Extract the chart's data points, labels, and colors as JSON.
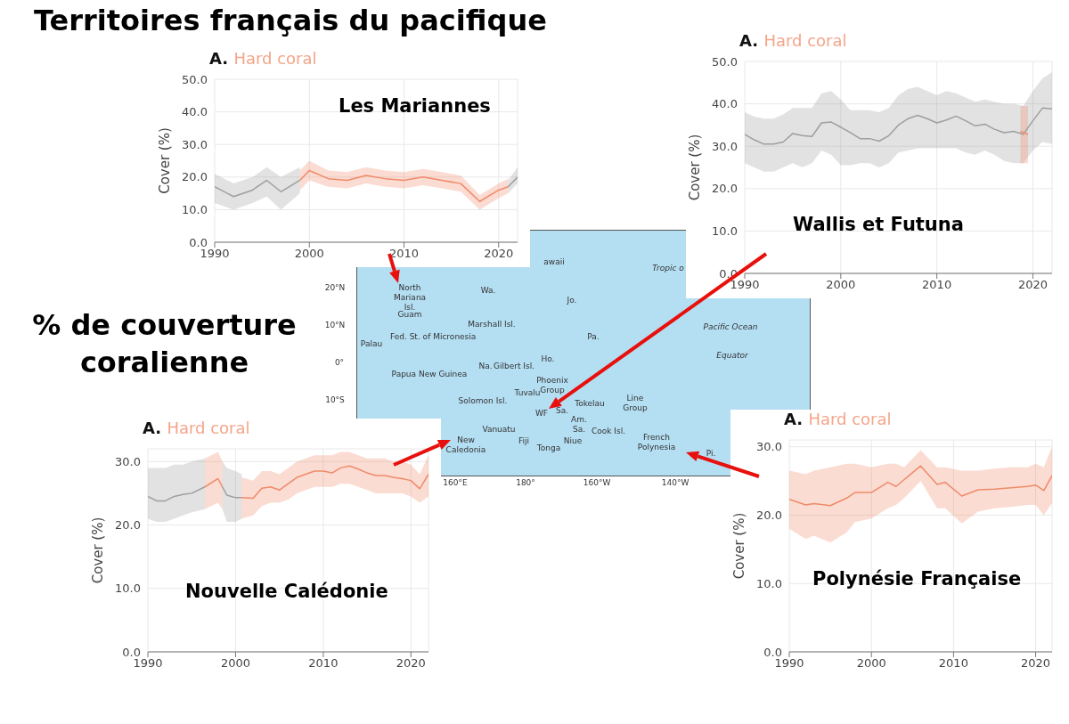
{
  "chart_data": [
    {
      "type": "other",
      "title": "Territoires français du pacifique",
      "annotations": [
        "% de couverture coralienne"
      ]
    },
    {
      "type": "line",
      "title": "A.",
      "subtitle": "Hard coral",
      "ylabel": "Cover (%)",
      "annotations": [
        "Les Mariannes"
      ],
      "xlim": [
        1990,
        2022
      ],
      "xticks": [
        1990,
        2000,
        2010,
        2020
      ],
      "ylim": [
        0,
        50
      ],
      "yticks": [
        {
          "value": 0,
          "label": "0.0"
        },
        {
          "value": 10,
          "label": "10.0"
        },
        {
          "value": 20,
          "label": "20.0"
        },
        {
          "value": 30,
          "label": "30.0"
        },
        {
          "value": 40,
          "label": "40.0"
        },
        {
          "value": 50,
          "label": "50.0"
        }
      ],
      "grid": true,
      "series": [
        {
          "color": "#9e9e9e",
          "x": [
            1990,
            1992,
            1994,
            1995.5,
            1997,
            1999
          ],
          "values": [
            17,
            14,
            16,
            19,
            15.5,
            19
          ],
          "lower": [
            12,
            10,
            12,
            14,
            10,
            15
          ],
          "upper": [
            21,
            18,
            20,
            23,
            20,
            23
          ]
        },
        {
          "color": "#f08a6a",
          "x": [
            1999,
            2000,
            2002,
            2004,
            2006,
            2008,
            2010,
            2012,
            2014,
            2016,
            2018,
            2020,
            2021
          ],
          "values": [
            19,
            22,
            19.5,
            19,
            20.5,
            19.5,
            19,
            20,
            19,
            18,
            12.5,
            16,
            17
          ],
          "lower": [
            16,
            19,
            17,
            16.5,
            18,
            17,
            16.5,
            17.5,
            16.5,
            15.5,
            10,
            13.5,
            15
          ],
          "upper": [
            22,
            25,
            22,
            21.5,
            23,
            22,
            21.5,
            22.5,
            21.5,
            20.5,
            14.5,
            18,
            19.5
          ]
        },
        {
          "color": "#9e9e9e",
          "x": [
            2021,
            2022
          ],
          "values": [
            17,
            20
          ],
          "lower": [
            15,
            18
          ],
          "upper": [
            19,
            23
          ]
        }
      ]
    },
    {
      "type": "line",
      "title": "A.",
      "subtitle": "Hard coral",
      "ylabel": "Cover (%)",
      "annotations": [
        "Wallis et Futuna"
      ],
      "xlim": [
        1990,
        2022
      ],
      "xticks": [
        1990,
        2000,
        2010,
        2020
      ],
      "ylim": [
        0,
        50
      ],
      "yticks": [
        {
          "value": 0,
          "label": "0.0"
        },
        {
          "value": 10,
          "label": "10.0"
        },
        {
          "value": 20,
          "label": "20.0"
        },
        {
          "value": 30,
          "label": "30.0"
        },
        {
          "value": 40,
          "label": "40.0"
        },
        {
          "value": 50,
          "label": "50.0"
        }
      ],
      "grid": true,
      "series": [
        {
          "color": "#9e9e9e",
          "x": [
            1990,
            1991,
            1992,
            1993,
            1994,
            1995,
            1996,
            1997,
            1998,
            1999,
            2000,
            2001,
            2002,
            2003,
            2004,
            2005,
            2006,
            2007,
            2008,
            2009,
            2010,
            2011,
            2012,
            2013,
            2014,
            2015,
            2016,
            2017,
            2018,
            2019,
            2020,
            2021,
            2022
          ],
          "values": [
            32.8,
            31.5,
            30.5,
            30.5,
            31,
            33,
            32.5,
            32.3,
            35.5,
            35.7,
            34.5,
            33.2,
            31.8,
            31.8,
            31.2,
            32.5,
            35,
            36.5,
            37.3,
            36.5,
            35.5,
            36.2,
            37.1,
            36,
            34.8,
            35.2,
            34,
            33.2,
            33.5,
            32.8,
            36,
            39,
            38.8
          ],
          "lower": [
            26,
            25,
            24,
            24,
            25,
            26,
            25,
            26,
            29,
            28,
            25.5,
            25.5,
            26,
            26,
            25,
            26,
            28.5,
            29,
            29.5,
            29.5,
            29.5,
            29.5,
            29.5,
            28.5,
            28,
            29,
            28,
            26.5,
            26,
            26,
            29,
            31,
            30.5
          ],
          "upper": [
            38,
            37,
            36.5,
            36.5,
            37.5,
            39,
            39,
            39,
            42.5,
            43,
            41,
            38.5,
            38.5,
            38.5,
            38,
            39,
            42,
            43.5,
            44,
            43,
            42,
            43,
            42.5,
            41.5,
            40.5,
            41,
            40.5,
            40,
            40,
            39.5,
            43,
            46,
            47.5
          ]
        },
        {
          "color": "#f08a6a",
          "x": [
            2018.7,
            2019.5
          ],
          "values": [
            33.5,
            32.8
          ],
          "lower": [
            26,
            26
          ],
          "upper": [
            39.5,
            39.5
          ]
        }
      ]
    },
    {
      "type": "other",
      "annotations": [
        "awaii",
        "Tropic o",
        "North Mariana Isl.",
        "Guam",
        "Wa.",
        "Jo.",
        "Marshall Isl.",
        "Palau",
        "Fed. St. of Micronesia",
        "Pa.",
        "Pacific Ocean",
        "Equator",
        "Na.",
        "Gilbert Isl.",
        "Ho.",
        "Papua New Guinea",
        "Phoenix Group",
        "Tuvalu",
        "Tokelau",
        "Solomon Isl.",
        "Line Group",
        "WF",
        "Sa.",
        "Am. Sa.",
        "New Caledonia",
        "Vanuatu",
        "Fiji",
        "Niue",
        "Cook Isl.",
        "French Polynesia",
        "Tonga",
        "Pi.",
        "20°N",
        "10°N",
        "0°",
        "10°S",
        "160°E",
        "180°",
        "160°W",
        "140°W"
      ]
    },
    {
      "type": "line",
      "title": "A.",
      "subtitle": "Hard coral",
      "ylabel": "Cover (%)",
      "annotations": [
        "Nouvelle Calédonie"
      ],
      "xlim": [
        1990,
        2022
      ],
      "xticks": [
        1990,
        2000,
        2010,
        2020
      ],
      "ylim": [
        0,
        32
      ],
      "yticks": [
        {
          "value": 0,
          "label": "0.0"
        },
        {
          "value": 10,
          "label": "10.0"
        },
        {
          "value": 20,
          "label": "20.0"
        },
        {
          "value": 30,
          "label": "30.0"
        }
      ],
      "grid": true,
      "series": [
        {
          "color": "#9e9e9e",
          "x": [
            1990,
            1991,
            1992,
            1993,
            1994,
            1995,
            1996.5
          ],
          "values": [
            24.5,
            23.8,
            23.8,
            24.5,
            24.8,
            25,
            26
          ],
          "lower": [
            21,
            20.5,
            20.5,
            21,
            21.5,
            22,
            22.5
          ],
          "upper": [
            29,
            29,
            29,
            29.5,
            29.5,
            30,
            30.5
          ]
        },
        {
          "color": "#f08a6a",
          "x": [
            1996.5,
            1998,
            1998.5
          ],
          "values": [
            26,
            27.3,
            26
          ],
          "lower": [
            22.5,
            23.5,
            22.5
          ],
          "upper": [
            30.5,
            31.5,
            30
          ]
        },
        {
          "color": "#9e9e9e",
          "x": [
            1998.5,
            1999,
            2000,
            2000.7
          ],
          "values": [
            26,
            24.7,
            24.3,
            24.3
          ],
          "lower": [
            22.5,
            20.5,
            20.5,
            21
          ],
          "upper": [
            30,
            29,
            28.5,
            28
          ]
        },
        {
          "color": "#f08a6a",
          "x": [
            2000.7,
            2002,
            2003,
            2004,
            2005,
            2006,
            2007,
            2008,
            2009,
            2010,
            2011,
            2012,
            2013,
            2014,
            2015,
            2016,
            2017,
            2018,
            2019,
            2020,
            2021,
            2022
          ],
          "values": [
            24.3,
            24.2,
            25.8,
            26,
            25.5,
            26.5,
            27.5,
            28,
            28.5,
            28.5,
            28.2,
            29,
            29.3,
            28.8,
            28.2,
            27.8,
            27.8,
            27.5,
            27.3,
            27,
            25.7,
            28
          ],
          "lower": [
            21,
            21.5,
            23,
            23.5,
            23.5,
            24,
            25,
            25.5,
            26,
            26,
            26,
            26.5,
            26.5,
            26,
            25.5,
            25,
            25,
            25,
            25,
            24.5,
            23.5,
            24.5
          ],
          "upper": [
            27.5,
            27,
            28.5,
            28.5,
            28,
            29,
            30,
            30.5,
            31,
            31,
            31,
            31.5,
            31.5,
            31,
            30.5,
            30.5,
            30.5,
            30,
            30,
            29.5,
            28,
            31
          ]
        }
      ]
    },
    {
      "type": "line",
      "title": "A.",
      "subtitle": "Hard coral",
      "ylabel": "Cover (%)",
      "annotations": [
        "Polynésie Française"
      ],
      "xlim": [
        1990,
        2022
      ],
      "xticks": [
        1990,
        2000,
        2010,
        2020
      ],
      "ylim": [
        0,
        31
      ],
      "yticks": [
        {
          "value": 0,
          "label": "0.0"
        },
        {
          "value": 10,
          "label": "10.0"
        },
        {
          "value": 20,
          "label": "20.0"
        },
        {
          "value": 30,
          "label": "30.0"
        }
      ],
      "grid": true,
      "series": [
        {
          "color": "#f08a6a",
          "x": [
            1990,
            1992,
            1993,
            1995,
            1997,
            1998,
            2000,
            2002,
            2003,
            2004,
            2006,
            2008,
            2009,
            2011,
            2013,
            2015,
            2017,
            2019,
            2020,
            2021,
            2022
          ],
          "values": [
            22.3,
            21.5,
            21.7,
            21.4,
            22.5,
            23.3,
            23.3,
            24.8,
            24.2,
            25.2,
            27.2,
            24.5,
            24.8,
            22.8,
            23.7,
            23.8,
            24,
            24.2,
            24.4,
            23.6,
            25.8
          ],
          "lower": [
            18,
            16.5,
            17,
            16,
            17.5,
            19,
            19.5,
            21,
            21.5,
            22.5,
            25,
            21,
            21,
            18.8,
            20.5,
            21,
            21.2,
            21.5,
            21.5,
            20,
            21.8
          ],
          "upper": [
            26.5,
            26,
            26.5,
            27,
            27.5,
            27.5,
            27,
            27.5,
            27.5,
            27,
            29.5,
            27,
            27,
            26.5,
            26.5,
            26.8,
            27,
            27,
            27.5,
            27,
            30
          ]
        }
      ]
    }
  ]
}
